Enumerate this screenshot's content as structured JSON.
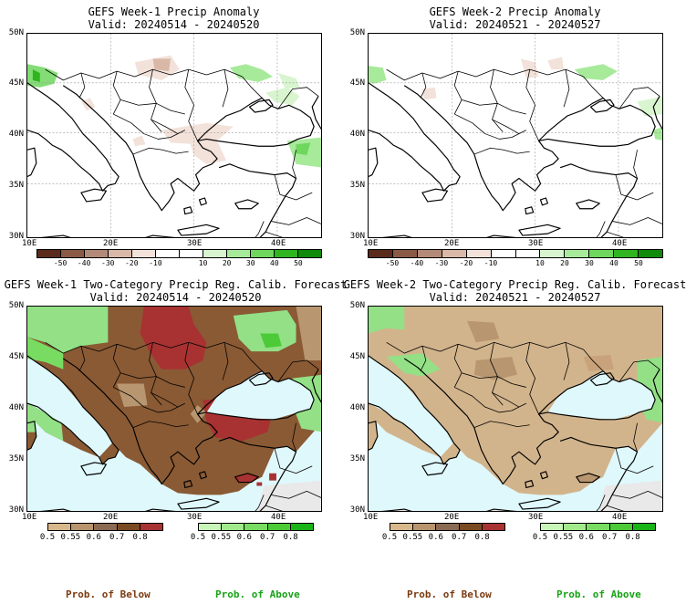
{
  "panels": {
    "tl": {
      "title": "GEFS Week-1 Precip Anomaly",
      "valid": "Valid: 20240514 - 20240520"
    },
    "tr": {
      "title": "GEFS Week-2 Precip Anomaly",
      "valid": "Valid: 20240521 - 20240527"
    },
    "bl": {
      "title": "GEFS Week-1 Two-Category Precip Reg. Calib. Forecast",
      "valid": "Valid: 20240514 - 20240520"
    },
    "br": {
      "title": "GEFS Week-2 Two-Category Precip Reg. Calib. Forecast",
      "valid": "Valid: 20240521 - 20240527"
    }
  },
  "axes": {
    "lat_labels": [
      "50N",
      "45N",
      "40N",
      "35N",
      "30N"
    ],
    "lon_labels": [
      "10E",
      "20E",
      "30E",
      "40E"
    ]
  },
  "anomaly_colorbar": {
    "ticks": [
      "-50",
      "-40",
      "-30",
      "-20",
      "-10",
      "10",
      "20",
      "30",
      "40",
      "50"
    ],
    "colors": [
      "#5a2a1a",
      "#8a5a44",
      "#b38a78",
      "#d9b8a8",
      "#f3e2da",
      "#ffffff",
      "#ffffff",
      "#d8f5cf",
      "#a7ea9a",
      "#6fd65e",
      "#2fb51f",
      "#0f8a0a"
    ]
  },
  "prob_colorbar": {
    "below_ticks": [
      "0.5",
      "0.55",
      "0.6",
      "0.7",
      "0.8"
    ],
    "above_ticks": [
      "0.5",
      "0.55",
      "0.6",
      "0.7",
      "0.8"
    ],
    "below_colors": [
      "#d8b88a",
      "#b8956c",
      "#8a6a52",
      "#7a4a22",
      "#a83232"
    ],
    "above_colors": [
      "#c8f5b8",
      "#a0ea8c",
      "#78dc62",
      "#4cca38",
      "#18b418"
    ],
    "below_label": "Prob. of Below",
    "above_label": "Prob. of Above"
  },
  "colors": {
    "sea": "#dff8fc",
    "land_above": "#93e086",
    "land_below": "#b89670",
    "below_strong": "#a83232",
    "dry_gray": "#e9e9e9",
    "below_mid": "#8a5a34"
  }
}
